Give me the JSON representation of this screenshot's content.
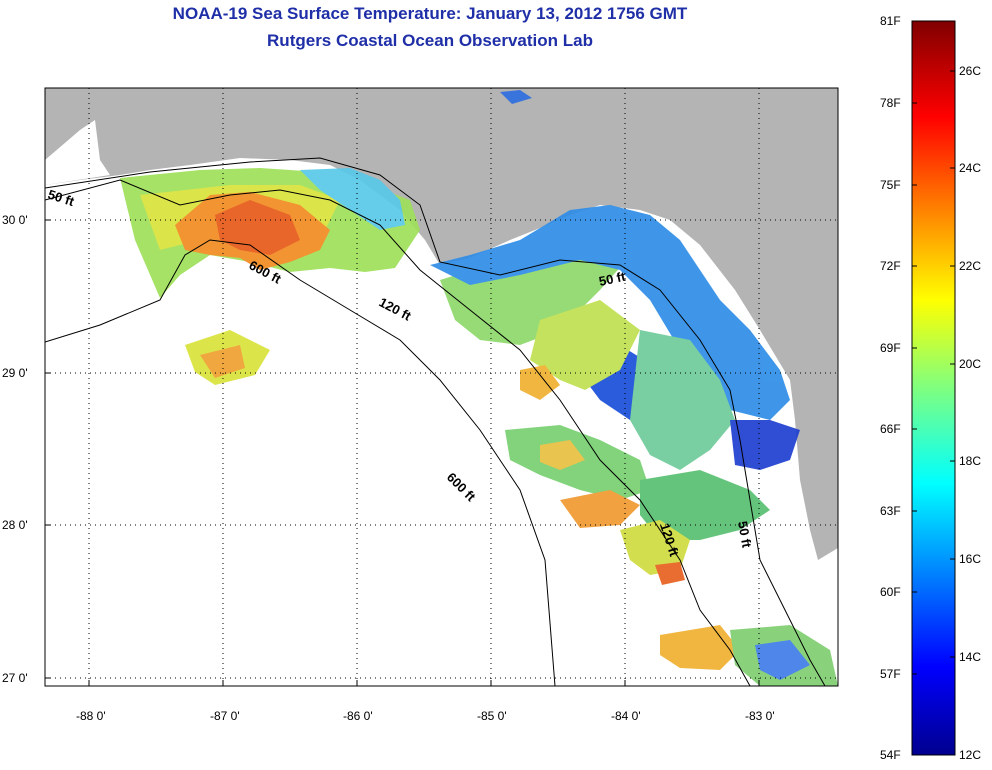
{
  "header": {
    "title": "NOAA-19 Sea Surface Temperature:  January 13, 2012 1756 GMT",
    "subtitle": "Rutgers Coastal Ocean Observation Lab"
  },
  "map": {
    "lon_labels": [
      "-88 0'",
      "-87 0'",
      "-86 0'",
      "-85 0'",
      "-84 0'",
      "-83 0'"
    ],
    "lat_labels": [
      "30 0'",
      "29 0'",
      "28 0'",
      "27 0'"
    ],
    "contour_labels": {
      "c50_west": "50 ft",
      "c600_north": "600 ft",
      "c120_north": "120 ft",
      "c50_north": "50 ft",
      "c600_south": "600 ft",
      "c120_south": "120 ft",
      "c50_south": "50 ft"
    }
  },
  "colorbar": {
    "f_labels": [
      "81F",
      "78F",
      "75F",
      "72F",
      "69F",
      "66F",
      "63F",
      "60F",
      "57F",
      "54F"
    ],
    "c_labels": [
      "26C",
      "24C",
      "22C",
      "20C",
      "18C",
      "16C",
      "14C",
      "12C"
    ]
  },
  "colors": {
    "land": "#b4b4b4",
    "title": "#1f2fa8"
  }
}
